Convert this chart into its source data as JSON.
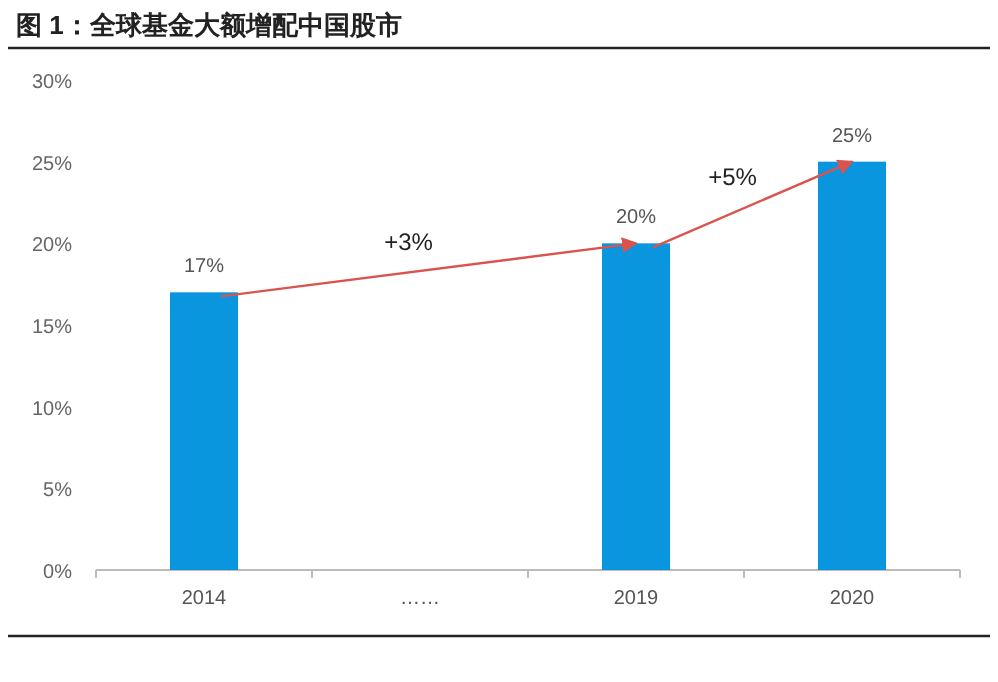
{
  "chart_data": {
    "type": "bar",
    "title": "图 1：全球基金大额增配中国股市",
    "categories": [
      "2014",
      "……",
      "2019",
      "2020"
    ],
    "values": [
      17,
      null,
      20,
      25
    ],
    "value_labels": [
      "17%",
      null,
      "20%",
      "25%"
    ],
    "color": "#0a96de",
    "ylim": [
      0,
      30
    ],
    "yticks": [
      {
        "value": 0,
        "label": "0%"
      },
      {
        "value": 5,
        "label": "5%"
      },
      {
        "value": 10,
        "label": "10%"
      },
      {
        "value": 15,
        "label": "15%"
      },
      {
        "value": 20,
        "label": "20%"
      },
      {
        "value": 25,
        "label": "25%"
      },
      {
        "value": 30,
        "label": "30%"
      }
    ],
    "annotations": [
      "+3%",
      "+5%"
    ],
    "grid": false
  }
}
